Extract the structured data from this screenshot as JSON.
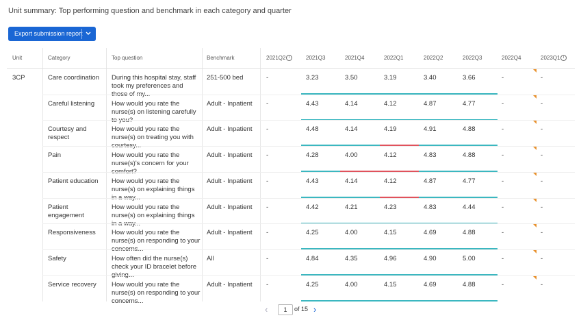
{
  "header": {
    "title": "Unit summary: Top performing question and benchmark in each category and quarter",
    "button": "Export submission report"
  },
  "table": {
    "columns": [
      "Unit",
      "Category",
      "Top question",
      "Benchmark",
      "2021Q2",
      "2021Q3",
      "2021Q4",
      "2022Q1",
      "2022Q2",
      "2022Q3",
      "2022Q4",
      "2023Q1"
    ],
    "groups": [
      {
        "unit": "3CP",
        "rows": [
          [
            "Care coordination",
            "During this hospital stay, staff took my preferences and those of my...",
            "251-500 bed",
            "-",
            "3.23",
            "3.50",
            "3.19",
            "3.40",
            "3.66",
            "-",
            "-"
          ],
          [
            "Careful listening",
            "How would you rate the nurse(s) on listening carefully to you?",
            "Adult - Inpatient",
            "-",
            "4.43",
            "4.14",
            "4.12",
            "4.87",
            "4.77",
            "-",
            "-"
          ],
          [
            "Courtesy and respect",
            "How would you rate the nurse(s) on treating you with courtesy...",
            "Adult - Inpatient",
            "-",
            "4.48",
            "4.14",
            "4.19",
            "4.91",
            "4.88",
            "-",
            "-"
          ],
          [
            "Pain",
            "How would you rate the nurse(s)'s concern for your comfort?",
            "Adult - Inpatient",
            "-",
            "4.28",
            "4.00",
            "4.12",
            "4.83",
            "4.88",
            "-",
            "-"
          ],
          [
            "Patient education",
            "How would you rate the nurse(s) on explaining things in a way...",
            "Adult - Inpatient",
            "-",
            "4.43",
            "4.14",
            "4.12",
            "4.87",
            "4.77",
            "-",
            "-"
          ],
          [
            "Patient engagement",
            "How would you rate the nurse(s) on explaining things in a way...",
            "Adult - Inpatient",
            "-",
            "4.42",
            "4.21",
            "4.23",
            "4.83",
            "4.44",
            "-",
            "-"
          ],
          [
            "Responsiveness",
            "How would you rate the nurse(s) on responding to your concerns...",
            "Adult - Inpatient",
            "-",
            "4.25",
            "4.00",
            "4.15",
            "4.69",
            "4.88",
            "-",
            "-"
          ],
          [
            "Safety",
            "How often did the nurse(s) check your ID bracelet before giving...",
            "All",
            "-",
            "4.84",
            "4.35",
            "4.96",
            "4.90",
            "5.00",
            "-",
            "-"
          ],
          [
            "Service recovery",
            "How would you rate the nurse(s) on responding to your concerns...",
            "Adult - Inpatient",
            "-",
            "4.25",
            "4.00",
            "4.15",
            "4.69",
            "4.88",
            "-",
            "-"
          ]
        ]
      }
    ]
  },
  "pagination": {
    "page": "1",
    "of": "of 15"
  }
}
